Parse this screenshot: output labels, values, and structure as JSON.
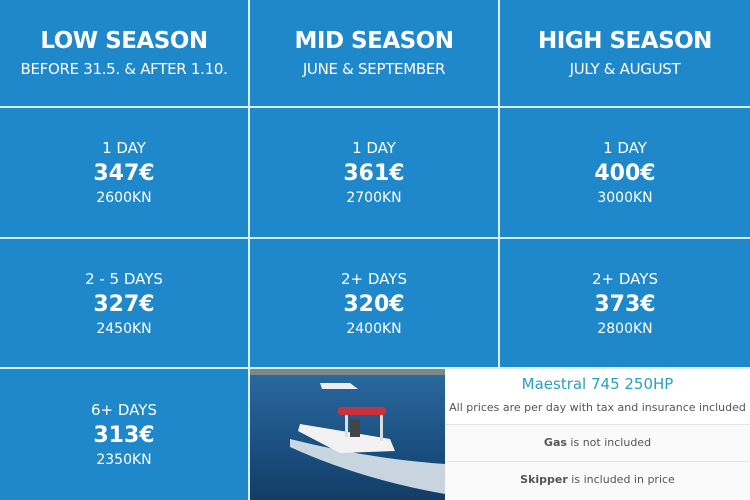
{
  "seasons": [
    {
      "title": "LOW SEASON",
      "dates": "BEFORE 31.5. & AFTER 1.10.",
      "prices": [
        {
          "days": "1 DAY",
          "eur": "347€",
          "kn": "2600KN"
        },
        {
          "days": "2 - 5 DAYS",
          "eur": "327€",
          "kn": "2450KN"
        },
        {
          "days": "6+ DAYS",
          "eur": "313€",
          "kn": "2350KN"
        }
      ]
    },
    {
      "title": "MID SEASON",
      "dates": "JUNE & SEPTEMBER",
      "prices": [
        {
          "days": "1 DAY",
          "eur": "361€",
          "kn": "2700KN"
        },
        {
          "days": "2+ DAYS",
          "eur": "320€",
          "kn": "2400KN"
        }
      ]
    },
    {
      "title": "HIGH SEASON",
      "dates": "JULY & AUGUST",
      "prices": [
        {
          "days": "1 DAY",
          "eur": "400€",
          "kn": "3000KN"
        },
        {
          "days": "2+ DAYS",
          "eur": "373€",
          "kn": "2800KN"
        }
      ]
    }
  ],
  "info": {
    "model": "Maestral 745 250HP",
    "note": "All prices are per day with tax and insurance included",
    "gas_bold": "Gas",
    "gas_rest": " is not included",
    "skipper_bold": "Skipper",
    "skipper_rest": " is included in price"
  },
  "colors": {
    "cell": "#1e88ca",
    "model": "#2a9fc0"
  }
}
